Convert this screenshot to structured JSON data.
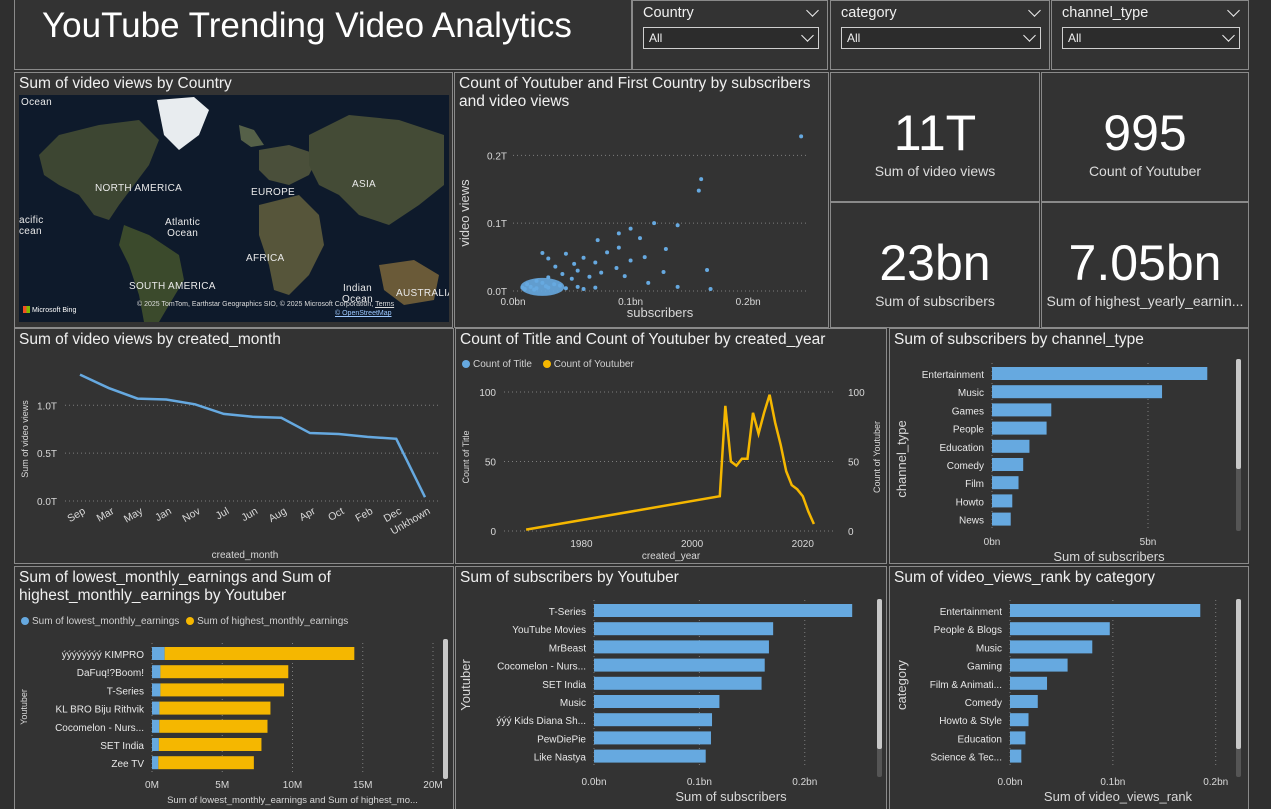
{
  "header": {
    "title": "YouTube Trending Video Analytics"
  },
  "slicers": [
    {
      "label": "Country",
      "value": "All"
    },
    {
      "label": "category",
      "value": "All"
    },
    {
      "label": "channel_type",
      "value": "All"
    }
  ],
  "colors": {
    "blue": "#66a9e0",
    "orange": "#f5b700",
    "panel": "#333333"
  },
  "map": {
    "title": "Sum of video views by Country",
    "labels": {
      "north_america": "NORTH AMERICA",
      "europe": "EUROPE",
      "asia": "ASIA",
      "africa": "AFRICA",
      "south_america": "SOUTH AMERICA",
      "australia": "AUSTRALIA",
      "atlantic_ocean": "Atlantic\nOcean",
      "indian_ocean": "Indian\nOcean",
      "pacific_ocean": "acific\ncean",
      "ocean_top": "Ocean"
    },
    "copyright": "© 2025 TomTom, Earthstar Geographics SIO, © 2025 Microsoft Corporation,",
    "terms": "Terms",
    "osm": "© OpenStreetMap",
    "bing": "Microsoft Bing"
  },
  "kpis": [
    {
      "value": "11T",
      "label": "Sum of video views"
    },
    {
      "value": "995",
      "label": "Count of Youtuber"
    },
    {
      "value": "23bn",
      "label": "Sum of subscribers"
    },
    {
      "value": "7.05bn",
      "label": "Sum of highest_yearly_earnin..."
    }
  ],
  "chart_data": [
    {
      "type": "scatter",
      "title": "Count of Youtuber and First Country by subscribers\nand video views",
      "xlabel": "subscribers",
      "ylabel": "video views",
      "xticks": [
        "0.0bn",
        "0.1bn",
        "0.2bn"
      ],
      "yticks": [
        "0.0T",
        "0.1T",
        "0.2T"
      ],
      "xlim": [
        0,
        0.25
      ],
      "ylim": [
        0,
        0.23
      ],
      "points": [
        [
          0.245,
          0.228
        ],
        [
          0.16,
          0.165
        ],
        [
          0.158,
          0.148
        ],
        [
          0.12,
          0.1
        ],
        [
          0.14,
          0.097
        ],
        [
          0.1,
          0.092
        ],
        [
          0.09,
          0.085
        ],
        [
          0.108,
          0.078
        ],
        [
          0.072,
          0.075
        ],
        [
          0.09,
          0.064
        ],
        [
          0.13,
          0.062
        ],
        [
          0.08,
          0.057
        ],
        [
          0.025,
          0.056
        ],
        [
          0.045,
          0.055
        ],
        [
          0.112,
          0.05
        ],
        [
          0.06,
          0.049
        ],
        [
          0.03,
          0.048
        ],
        [
          0.1,
          0.045
        ],
        [
          0.07,
          0.042
        ],
        [
          0.052,
          0.04
        ],
        [
          0.165,
          0.031
        ],
        [
          0.088,
          0.034
        ],
        [
          0.036,
          0.036
        ],
        [
          0.128,
          0.028
        ],
        [
          0.055,
          0.03
        ],
        [
          0.075,
          0.027
        ],
        [
          0.042,
          0.025
        ],
        [
          0.095,
          0.022
        ],
        [
          0.065,
          0.021
        ],
        [
          0.03,
          0.02
        ],
        [
          0.05,
          0.018
        ],
        [
          0.115,
          0.012
        ],
        [
          0.14,
          0.006
        ],
        [
          0.168,
          0.003
        ],
        [
          0.02,
          0.015
        ],
        [
          0.025,
          0.012
        ],
        [
          0.035,
          0.01
        ],
        [
          0.04,
          0.008
        ],
        [
          0.015,
          0.006
        ],
        [
          0.02,
          0.004
        ],
        [
          0.03,
          0.005
        ],
        [
          0.045,
          0.004
        ],
        [
          0.055,
          0.006
        ],
        [
          0.06,
          0.003
        ],
        [
          0.07,
          0.005
        ],
        [
          0.012,
          0.01
        ],
        [
          0.018,
          0.002
        ],
        [
          0.01,
          0.003
        ],
        [
          0.008,
          0.005
        ],
        [
          0.028,
          0.007
        ]
      ]
    },
    {
      "type": "line",
      "title": "Sum of video views by created_month",
      "xlabel": "created_month",
      "ylabel": "Sum of video views",
      "categories": [
        "Sep",
        "Mar",
        "May",
        "Jan",
        "Nov",
        "Jul",
        "Jun",
        "Aug",
        "Apr",
        "Oct",
        "Feb",
        "Dec",
        "Unkhown"
      ],
      "values": [
        1.32,
        1.18,
        1.07,
        1.06,
        1.01,
        0.91,
        0.88,
        0.87,
        0.71,
        0.7,
        0.67,
        0.65,
        0.04
      ],
      "yticks": [
        "0.0T",
        "0.5T",
        "1.0T"
      ],
      "ylim": [
        0,
        1.4
      ]
    },
    {
      "type": "line",
      "title": "Count of Title and Count of Youtuber by created_year",
      "xlabel": "created_year",
      "ylabel_left": "Count of Title",
      "ylabel_right": "Count of Youtuber",
      "legend": [
        "Count of Title",
        "Count of Youtuber"
      ],
      "xticks": [
        "1980",
        "2000",
        "2020"
      ],
      "yticks": [
        "0",
        "50",
        "100"
      ],
      "xlim": [
        1966,
        2026
      ],
      "ylim": [
        0,
        105
      ],
      "x": [
        1970,
        2005,
        2006,
        2007,
        2008,
        2009,
        2010,
        2011,
        2012,
        2013,
        2014,
        2015,
        2016,
        2017,
        2018,
        2019,
        2020,
        2021,
        2022
      ],
      "values": [
        1,
        25,
        90,
        50,
        47,
        52,
        52,
        85,
        70,
        85,
        98,
        78,
        62,
        43,
        33,
        30,
        25,
        14,
        5
      ]
    },
    {
      "type": "bar",
      "title": "Sum of subscribers by channel_type",
      "xlabel": "Sum of subscribers",
      "ylabel": "channel_type",
      "categories": [
        "Entertainment",
        "Music",
        "Games",
        "People",
        "Education",
        "Comedy",
        "Film",
        "Howto",
        "News"
      ],
      "values": [
        6.9,
        5.45,
        1.9,
        1.75,
        1.2,
        1.0,
        0.85,
        0.65,
        0.6
      ],
      "xticks": [
        "0bn",
        "5bn"
      ],
      "xlim": [
        0,
        7.5
      ]
    },
    {
      "type": "bar",
      "title": "Sum of lowest_monthly_earnings and Sum of\nhighest_monthly_earnings by Youtuber",
      "xlabel": "Sum of lowest_monthly_earnings and Sum of highest_mo...",
      "ylabel": "Youtuber",
      "legend": [
        "Sum of lowest_monthly_earnings",
        "Sum of highest_monthly_earnings"
      ],
      "categories": [
        "ýýýýýýýý KIMPRO",
        "DaFuq!?Boom!",
        "T-Series",
        "KL BRO Biju Rithvik",
        "Cocomelon - Nurs...",
        "SET India",
        "Zee TV"
      ],
      "series": [
        {
          "name": "Sum of lowest_monthly_earnings",
          "values": [
            0.9,
            0.6,
            0.6,
            0.53,
            0.52,
            0.49,
            0.45
          ]
        },
        {
          "name": "Sum of highest_monthly_earnings",
          "values": [
            13.5,
            9.1,
            8.8,
            7.9,
            7.7,
            7.3,
            6.8
          ]
        }
      ],
      "xticks": [
        "0M",
        "5M",
        "10M",
        "15M",
        "20M"
      ],
      "xlim": [
        0,
        20
      ]
    },
    {
      "type": "bar",
      "title": "Sum of subscribers by Youtuber",
      "xlabel": "Sum of subscribers",
      "ylabel": "Youtuber",
      "categories": [
        "T-Series",
        "YouTube Movies",
        "MrBeast",
        "Cocomelon - Nurs...",
        "SET India",
        "Music",
        "ýýý Kids Diana Sh...",
        "PewDiePie",
        "Like Nastya"
      ],
      "values": [
        0.245,
        0.17,
        0.166,
        0.162,
        0.159,
        0.119,
        0.112,
        0.111,
        0.106
      ],
      "xticks": [
        "0.0bn",
        "0.1bn",
        "0.2bn"
      ],
      "xlim": [
        0,
        0.26
      ]
    },
    {
      "type": "bar",
      "title": "Sum of video_views_rank by category",
      "xlabel": "Sum of video_views_rank",
      "ylabel": "category",
      "categories": [
        "Entertainment",
        "People & Blogs",
        "Music",
        "Gaming",
        "Film & Animati...",
        "Comedy",
        "Howto & Style",
        "Education",
        "Science & Tec..."
      ],
      "values": [
        0.185,
        0.097,
        0.08,
        0.056,
        0.036,
        0.027,
        0.018,
        0.015,
        0.011
      ],
      "xticks": [
        "0.0bn",
        "0.1bn",
        "0.2bn"
      ],
      "xlim": [
        0,
        0.21
      ]
    }
  ]
}
